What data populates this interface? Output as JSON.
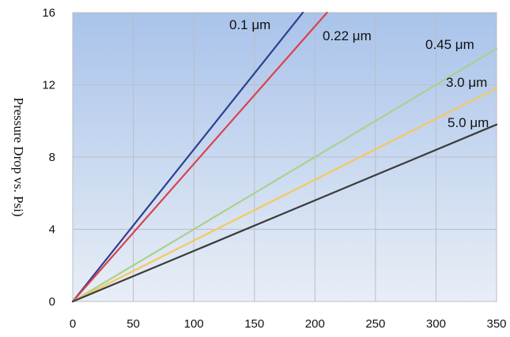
{
  "chart_data": {
    "type": "line",
    "title": "",
    "xlabel": "",
    "ylabel": "Pressure Drop vs. Psi)",
    "xlim": [
      0,
      350
    ],
    "ylim": [
      0,
      16
    ],
    "x_ticks": [
      "0",
      "50",
      "100",
      "150",
      "200",
      "250",
      "300",
      "350"
    ],
    "y_ticks": [
      "0",
      "4",
      "8",
      "12",
      "16"
    ],
    "grid": true,
    "legend": "none",
    "series": [
      {
        "name": "0.1 μm",
        "x": [
          0,
          190
        ],
        "y": [
          0,
          16
        ],
        "color": "#2e3f8f"
      },
      {
        "name": "0.22 μm",
        "x": [
          0,
          210
        ],
        "y": [
          0,
          16
        ],
        "color": "#d9424e"
      },
      {
        "name": "0.45 μm",
        "x": [
          0,
          350
        ],
        "y": [
          0,
          14
        ],
        "color": "#a9d18e"
      },
      {
        "name": "3.0 μm",
        "x": [
          0,
          350
        ],
        "y": [
          0,
          11.8
        ],
        "color": "#f4c95d"
      },
      {
        "name": "5.0 μm",
        "x": [
          0,
          350
        ],
        "y": [
          0,
          9.8
        ],
        "color": "#3b3b3b"
      }
    ]
  }
}
